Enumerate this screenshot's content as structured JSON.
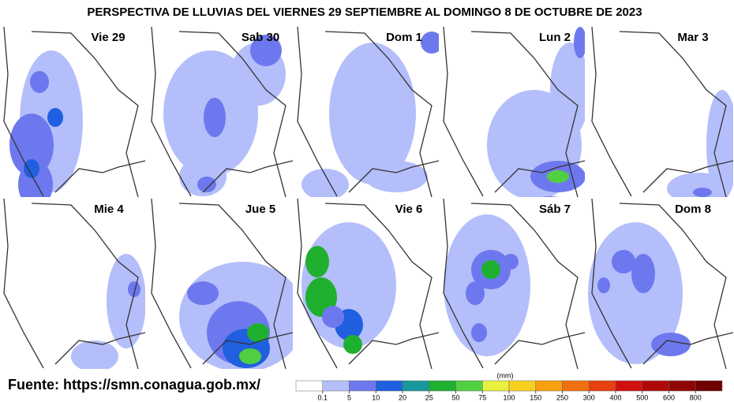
{
  "title": "PERSPECTIVA DE LLUVIAS DEL VIERNES 29 SEPTIEMBRE AL DOMINGO 8 DE OCTUBRE DE 2023",
  "panels": [
    {
      "label": "Vie 29"
    },
    {
      "label": "Sab 30"
    },
    {
      "label": "Dom 1"
    },
    {
      "label": "Lun 2"
    },
    {
      "label": "Mar 3"
    },
    {
      "label": "Mie 4"
    },
    {
      "label": "Jue 5"
    },
    {
      "label": "Vie 6"
    },
    {
      "label": "Sáb 7"
    },
    {
      "label": "Dom 8"
    }
  ],
  "source": "Fuente: https://smn.conagua.gob.mx/",
  "legend": {
    "unit": "(mm)",
    "ticks": [
      0.1,
      5,
      10,
      20,
      25,
      50,
      75,
      100,
      150,
      250,
      300,
      400,
      500,
      600,
      800
    ],
    "colors": [
      "#ffffff",
      "#b4befa",
      "#6e78ee",
      "#2060e0",
      "#18989a",
      "#20b030",
      "#50d040",
      "#e8f040",
      "#f8d020",
      "#f8a010",
      "#f07010",
      "#e84010",
      "#d01010",
      "#b00808",
      "#900404",
      "#700000"
    ]
  }
}
